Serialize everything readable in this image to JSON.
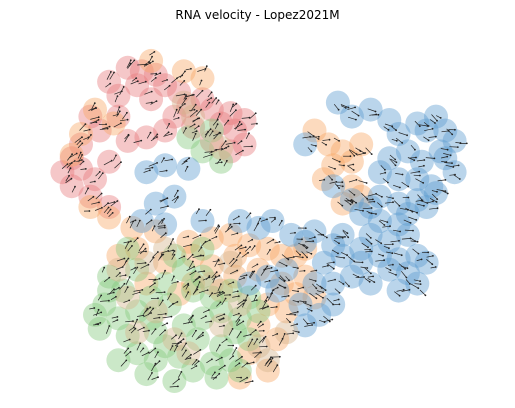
{
  "chart_data": {
    "type": "scatter",
    "title": "RNA velocity - Lopez2021M",
    "xlabel": "",
    "ylabel": "",
    "axes_visible": false,
    "grid": false,
    "legend": "none",
    "cluster_colors": [
      "#e7797d",
      "#f7a865",
      "#82c77d",
      "#5a9bd0",
      "#d4b38a"
    ],
    "clusters": [
      {
        "color": "#e7797d",
        "points": [
          [
            0.22,
            0.08
          ],
          [
            0.25,
            0.09
          ],
          [
            0.28,
            0.1
          ],
          [
            0.18,
            0.12
          ],
          [
            0.24,
            0.13
          ],
          [
            0.3,
            0.13
          ],
          [
            0.33,
            0.15
          ],
          [
            0.2,
            0.16
          ],
          [
            0.27,
            0.17
          ],
          [
            0.35,
            0.19
          ],
          [
            0.4,
            0.2
          ],
          [
            0.44,
            0.21
          ],
          [
            0.42,
            0.24
          ],
          [
            0.45,
            0.26
          ],
          [
            0.14,
            0.22
          ],
          [
            0.16,
            0.26
          ],
          [
            0.12,
            0.3
          ],
          [
            0.1,
            0.34
          ],
          [
            0.08,
            0.38
          ],
          [
            0.12,
            0.37
          ],
          [
            0.15,
            0.4
          ],
          [
            0.18,
            0.35
          ],
          [
            0.22,
            0.29
          ],
          [
            0.26,
            0.28
          ],
          [
            0.3,
            0.26
          ],
          [
            0.38,
            0.17
          ],
          [
            0.36,
            0.25
          ],
          [
            0.47,
            0.3
          ],
          [
            0.44,
            0.32
          ],
          [
            0.4,
            0.29
          ],
          [
            0.1,
            0.42
          ],
          [
            0.14,
            0.45
          ],
          [
            0.18,
            0.48
          ],
          [
            0.2,
            0.22
          ],
          [
            0.32,
            0.22
          ],
          [
            0.47,
            0.23
          ]
        ]
      },
      {
        "color": "#f7a865",
        "points": [
          [
            0.27,
            0.06
          ],
          [
            0.34,
            0.09
          ],
          [
            0.38,
            0.11
          ],
          [
            0.15,
            0.2
          ],
          [
            0.19,
            0.24
          ],
          [
            0.12,
            0.27
          ],
          [
            0.1,
            0.33
          ],
          [
            0.14,
            0.48
          ],
          [
            0.18,
            0.51
          ],
          [
            0.23,
            0.54
          ],
          [
            0.28,
            0.55
          ],
          [
            0.24,
            0.6
          ],
          [
            0.2,
            0.62
          ],
          [
            0.35,
            0.58
          ],
          [
            0.4,
            0.57
          ],
          [
            0.44,
            0.56
          ],
          [
            0.48,
            0.59
          ],
          [
            0.52,
            0.6
          ],
          [
            0.55,
            0.62
          ],
          [
            0.5,
            0.66
          ],
          [
            0.45,
            0.68
          ],
          [
            0.4,
            0.65
          ],
          [
            0.36,
            0.7
          ],
          [
            0.33,
            0.73
          ],
          [
            0.55,
            0.7
          ],
          [
            0.58,
            0.73
          ],
          [
            0.56,
            0.78
          ],
          [
            0.52,
            0.76
          ],
          [
            0.5,
            0.82
          ],
          [
            0.54,
            0.86
          ],
          [
            0.48,
            0.9
          ],
          [
            0.52,
            0.95
          ],
          [
            0.46,
            0.97
          ],
          [
            0.62,
            0.26
          ],
          [
            0.65,
            0.3
          ],
          [
            0.68,
            0.32
          ],
          [
            0.7,
            0.35
          ],
          [
            0.72,
            0.3
          ],
          [
            0.66,
            0.36
          ],
          [
            0.64,
            0.4
          ],
          [
            0.7,
            0.42
          ],
          [
            0.72,
            0.45
          ],
          [
            0.68,
            0.47
          ],
          [
            0.58,
            0.62
          ],
          [
            0.6,
            0.6
          ],
          [
            0.3,
            0.64
          ],
          [
            0.42,
            0.72
          ],
          [
            0.26,
            0.7
          ],
          [
            0.6,
            0.68
          ],
          [
            0.62,
            0.74
          ],
          [
            0.45,
            0.62
          ],
          [
            0.36,
            0.62
          ]
        ]
      },
      {
        "color": "#82c77d",
        "points": [
          [
            0.35,
            0.28
          ],
          [
            0.38,
            0.32
          ],
          [
            0.42,
            0.35
          ],
          [
            0.4,
            0.26
          ],
          [
            0.18,
            0.68
          ],
          [
            0.21,
            0.72
          ],
          [
            0.17,
            0.76
          ],
          [
            0.2,
            0.8
          ],
          [
            0.16,
            0.83
          ],
          [
            0.22,
            0.85
          ],
          [
            0.24,
            0.9
          ],
          [
            0.28,
            0.92
          ],
          [
            0.3,
            0.88
          ],
          [
            0.27,
            0.8
          ],
          [
            0.31,
            0.76
          ],
          [
            0.34,
            0.82
          ],
          [
            0.37,
            0.86
          ],
          [
            0.33,
            0.91
          ],
          [
            0.36,
            0.95
          ],
          [
            0.4,
            0.93
          ],
          [
            0.42,
            0.88
          ],
          [
            0.38,
            0.8
          ],
          [
            0.42,
            0.78
          ],
          [
            0.45,
            0.84
          ],
          [
            0.44,
            0.92
          ],
          [
            0.46,
            0.95
          ],
          [
            0.4,
            0.74
          ],
          [
            0.3,
            0.7
          ],
          [
            0.27,
            0.74
          ],
          [
            0.34,
            0.66
          ],
          [
            0.38,
            0.68
          ],
          [
            0.48,
            0.74
          ],
          [
            0.5,
            0.78
          ],
          [
            0.24,
            0.66
          ],
          [
            0.22,
            0.6
          ],
          [
            0.18,
            0.72
          ],
          [
            0.15,
            0.79
          ],
          [
            0.2,
            0.92
          ],
          [
            0.26,
            0.96
          ],
          [
            0.32,
            0.98
          ],
          [
            0.41,
            0.97
          ],
          [
            0.36,
            0.72
          ],
          [
            0.44,
            0.72
          ],
          [
            0.46,
            0.8
          ],
          [
            0.48,
            0.86
          ],
          [
            0.28,
            0.84
          ],
          [
            0.24,
            0.78
          ],
          [
            0.32,
            0.62
          ],
          [
            0.38,
            0.6
          ]
        ]
      },
      {
        "color": "#5a9bd0",
        "points": [
          [
            0.26,
            0.38
          ],
          [
            0.3,
            0.36
          ],
          [
            0.35,
            0.37
          ],
          [
            0.32,
            0.45
          ],
          [
            0.28,
            0.47
          ],
          [
            0.25,
            0.52
          ],
          [
            0.3,
            0.53
          ],
          [
            0.38,
            0.52
          ],
          [
            0.46,
            0.52
          ],
          [
            0.5,
            0.54
          ],
          [
            0.53,
            0.52
          ],
          [
            0.57,
            0.56
          ],
          [
            0.6,
            0.58
          ],
          [
            0.62,
            0.55
          ],
          [
            0.66,
            0.59
          ],
          [
            0.68,
            0.56
          ],
          [
            0.64,
            0.64
          ],
          [
            0.62,
            0.7
          ],
          [
            0.59,
            0.76
          ],
          [
            0.6,
            0.82
          ],
          [
            0.63,
            0.79
          ],
          [
            0.66,
            0.76
          ],
          [
            0.52,
            0.68
          ],
          [
            0.56,
            0.66
          ],
          [
            0.54,
            0.72
          ],
          [
            0.48,
            0.7
          ],
          [
            0.67,
            0.18
          ],
          [
            0.7,
            0.22
          ],
          [
            0.74,
            0.2
          ],
          [
            0.78,
            0.23
          ],
          [
            0.8,
            0.27
          ],
          [
            0.84,
            0.24
          ],
          [
            0.86,
            0.26
          ],
          [
            0.88,
            0.22
          ],
          [
            0.9,
            0.26
          ],
          [
            0.92,
            0.29
          ],
          [
            0.89,
            0.32
          ],
          [
            0.85,
            0.35
          ],
          [
            0.82,
            0.32
          ],
          [
            0.78,
            0.34
          ],
          [
            0.76,
            0.38
          ],
          [
            0.8,
            0.4
          ],
          [
            0.84,
            0.4
          ],
          [
            0.87,
            0.42
          ],
          [
            0.84,
            0.46
          ],
          [
            0.8,
            0.47
          ],
          [
            0.76,
            0.45
          ],
          [
            0.74,
            0.48
          ],
          [
            0.72,
            0.5
          ],
          [
            0.76,
            0.52
          ],
          [
            0.8,
            0.53
          ],
          [
            0.82,
            0.5
          ],
          [
            0.86,
            0.48
          ],
          [
            0.88,
            0.44
          ],
          [
            0.82,
            0.56
          ],
          [
            0.78,
            0.58
          ],
          [
            0.76,
            0.62
          ],
          [
            0.8,
            0.63
          ],
          [
            0.84,
            0.62
          ],
          [
            0.86,
            0.64
          ],
          [
            0.82,
            0.67
          ],
          [
            0.78,
            0.66
          ],
          [
            0.84,
            0.7
          ],
          [
            0.8,
            0.72
          ],
          [
            0.74,
            0.7
          ],
          [
            0.7,
            0.68
          ],
          [
            0.72,
            0.64
          ],
          [
            0.68,
            0.62
          ],
          [
            0.66,
            0.7
          ],
          [
            0.9,
            0.34
          ],
          [
            0.92,
            0.38
          ],
          [
            0.6,
            0.3
          ],
          [
            0.66,
            0.42
          ],
          [
            0.7,
            0.46
          ],
          [
            0.74,
            0.56
          ],
          [
            0.72,
            0.6
          ]
        ]
      },
      {
        "color": "#d4b38a",
        "points": [
          [
            0.34,
            0.18
          ],
          [
            0.36,
            0.22
          ],
          [
            0.42,
            0.31
          ],
          [
            0.2,
            0.66
          ],
          [
            0.26,
            0.64
          ],
          [
            0.22,
            0.74
          ],
          [
            0.28,
            0.78
          ],
          [
            0.32,
            0.86
          ],
          [
            0.35,
            0.9
          ],
          [
            0.42,
            0.82
          ],
          [
            0.46,
            0.76
          ],
          [
            0.5,
            0.88
          ],
          [
            0.52,
            0.92
          ],
          [
            0.4,
            0.7
          ],
          [
            0.3,
            0.6
          ],
          [
            0.56,
            0.84
          ],
          [
            0.44,
            0.64
          ],
          [
            0.24,
            0.84
          ]
        ]
      }
    ]
  }
}
